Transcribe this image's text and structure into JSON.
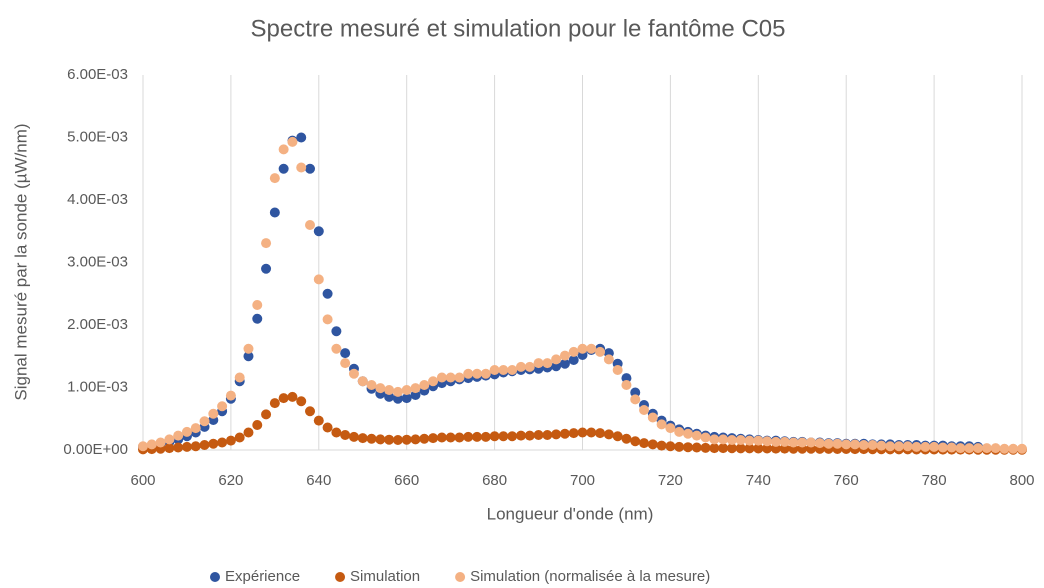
{
  "chart_data": {
    "type": "scatter",
    "title": "Spectre mesuré et simulation pour le fantôme C05",
    "x_label": "Longueur d'onde (nm)",
    "y_label": "Signal mesuré par la sonde (µW/nm)",
    "xlim": [
      600,
      800
    ],
    "xticks": [
      600,
      620,
      640,
      660,
      680,
      700,
      720,
      740,
      760,
      780,
      800
    ],
    "ylim": [
      0,
      0.006
    ],
    "yticks": [
      {
        "value": 0,
        "label": "0.00E+00"
      },
      {
        "value": 0.001,
        "label": "1.00E-03"
      },
      {
        "value": 0.002,
        "label": "2.00E-03"
      },
      {
        "value": 0.003,
        "label": "3.00E-03"
      },
      {
        "value": 0.004,
        "label": "4.00E-03"
      },
      {
        "value": 0.005,
        "label": "5.00E-03"
      },
      {
        "value": 0.006,
        "label": "6.00E-03"
      }
    ],
    "grid": "x",
    "legend": "bottom",
    "x": [
      600,
      602,
      604,
      606,
      608,
      610,
      612,
      614,
      616,
      618,
      620,
      622,
      624,
      626,
      628,
      630,
      632,
      634,
      636,
      638,
      640,
      642,
      644,
      646,
      648,
      650,
      652,
      654,
      656,
      658,
      660,
      662,
      664,
      666,
      668,
      670,
      672,
      674,
      676,
      678,
      680,
      682,
      684,
      686,
      688,
      690,
      692,
      694,
      696,
      698,
      700,
      702,
      704,
      706,
      708,
      710,
      712,
      714,
      716,
      718,
      720,
      722,
      724,
      726,
      728,
      730,
      732,
      734,
      736,
      738,
      740,
      742,
      744,
      746,
      748,
      750,
      752,
      754,
      756,
      758,
      760,
      762,
      764,
      766,
      768,
      770,
      772,
      774,
      776,
      778,
      780,
      782,
      784,
      786,
      788,
      790,
      792,
      794,
      796,
      798,
      800
    ],
    "series": [
      {
        "name": "Expérience",
        "color": "#2f55a0",
        "values": [
          5e-05,
          7e-05,
          0.0001,
          0.00013,
          0.00017,
          0.00022,
          0.00028,
          0.00037,
          0.00048,
          0.00062,
          0.00082,
          0.0011,
          0.0015,
          0.0021,
          0.0029,
          0.0038,
          0.0045,
          0.00495,
          0.005,
          0.0045,
          0.0035,
          0.0025,
          0.0019,
          0.00155,
          0.0013,
          0.0011,
          0.00098,
          0.0009,
          0.00085,
          0.00082,
          0.00083,
          0.00088,
          0.00095,
          0.00102,
          0.00107,
          0.0011,
          0.00113,
          0.00115,
          0.00117,
          0.00119,
          0.00121,
          0.00124,
          0.00126,
          0.00128,
          0.00129,
          0.0013,
          0.00132,
          0.00134,
          0.00138,
          0.00144,
          0.00152,
          0.0016,
          0.00162,
          0.00155,
          0.00138,
          0.00115,
          0.00092,
          0.00072,
          0.00058,
          0.00047,
          0.00039,
          0.00033,
          0.00029,
          0.00026,
          0.00023,
          0.00021,
          0.0002,
          0.00019,
          0.00018,
          0.00017,
          0.00016,
          0.00015,
          0.00015,
          0.00014,
          0.00013,
          0.00013,
          0.00012,
          0.00012,
          0.00011,
          0.00011,
          0.0001,
          0.0001,
          0.0001,
          9e-05,
          9e-05,
          9e-05,
          8e-05,
          8e-05,
          8e-05,
          7e-05,
          7e-05,
          7e-05,
          6e-05,
          6e-05,
          6e-05,
          5e-05,
          null,
          null,
          null,
          null,
          null
        ]
      },
      {
        "name": "Simulation",
        "color": "#c55a11",
        "values": [
          1e-05,
          1.5e-05,
          2e-05,
          3e-05,
          4e-05,
          5e-05,
          6e-05,
          8e-05,
          0.0001,
          0.00012,
          0.00015,
          0.0002,
          0.00028,
          0.0004,
          0.00057,
          0.00075,
          0.00083,
          0.00085,
          0.00078,
          0.00062,
          0.00047,
          0.00036,
          0.00028,
          0.00024,
          0.00021,
          0.00019,
          0.00018,
          0.00017,
          0.000165,
          0.00016,
          0.000165,
          0.00017,
          0.00018,
          0.00019,
          0.0002,
          0.0002,
          0.0002,
          0.00021,
          0.00021,
          0.00021,
          0.00022,
          0.00022,
          0.00022,
          0.00023,
          0.00023,
          0.00024,
          0.00024,
          0.00025,
          0.00026,
          0.00027,
          0.00028,
          0.00028,
          0.00027,
          0.00025,
          0.00022,
          0.00018,
          0.00014,
          0.00011,
          9e-05,
          7e-05,
          6e-05,
          5e-05,
          4.5e-05,
          4e-05,
          3.5e-05,
          3e-05,
          3e-05,
          2.8e-05,
          2.7e-05,
          2.6e-05,
          2.5e-05,
          2.4e-05,
          2.3e-05,
          2.2e-05,
          2.1e-05,
          2e-05,
          2e-05,
          1.9e-05,
          1.8e-05,
          1.7e-05,
          1.6e-05,
          1.5e-05,
          1.4e-05,
          1.3e-05,
          1.2e-05,
          1.1e-05,
          1e-05,
          1e-05,
          9e-06,
          8e-06,
          8e-06,
          7e-06,
          7e-06,
          6e-06,
          6e-06,
          5e-06,
          5e-06,
          5e-06,
          4e-06,
          4e-06,
          4e-06
        ]
      },
      {
        "name": "Simulation (normalisée à la mesure)",
        "color": "#f4b183",
        "values": [
          6e-05,
          9e-05,
          0.00012,
          0.00017,
          0.00023,
          0.00029,
          0.00035,
          0.00046,
          0.00058,
          0.0007,
          0.00087,
          0.00116,
          0.00162,
          0.00232,
          0.00331,
          0.00435,
          0.00481,
          0.00493,
          0.00452,
          0.0036,
          0.00273,
          0.00209,
          0.00162,
          0.00139,
          0.00122,
          0.0011,
          0.00104,
          0.00099,
          0.00096,
          0.00093,
          0.00096,
          0.00099,
          0.00104,
          0.0011,
          0.00116,
          0.00116,
          0.00116,
          0.00122,
          0.00122,
          0.00122,
          0.00128,
          0.00128,
          0.00128,
          0.00133,
          0.00133,
          0.00139,
          0.00139,
          0.00145,
          0.00151,
          0.00157,
          0.00162,
          0.00162,
          0.00157,
          0.00145,
          0.00128,
          0.00104,
          0.00081,
          0.00064,
          0.00052,
          0.00041,
          0.00035,
          0.00029,
          0.00026,
          0.00023,
          0.0002,
          0.00017,
          0.00017,
          0.00016,
          0.00016,
          0.00015,
          0.00015,
          0.00014,
          0.00013,
          0.00013,
          0.00012,
          0.00012,
          0.00012,
          0.00011,
          0.0001,
          0.0001,
          9e-05,
          9e-05,
          8e-05,
          8e-05,
          7e-05,
          6e-05,
          6e-05,
          6e-05,
          5e-05,
          5e-05,
          5e-05,
          4e-05,
          4e-05,
          3e-05,
          3e-05,
          3e-05,
          3e-05,
          3e-05,
          2e-05,
          2e-05,
          2e-05
        ]
      }
    ]
  }
}
